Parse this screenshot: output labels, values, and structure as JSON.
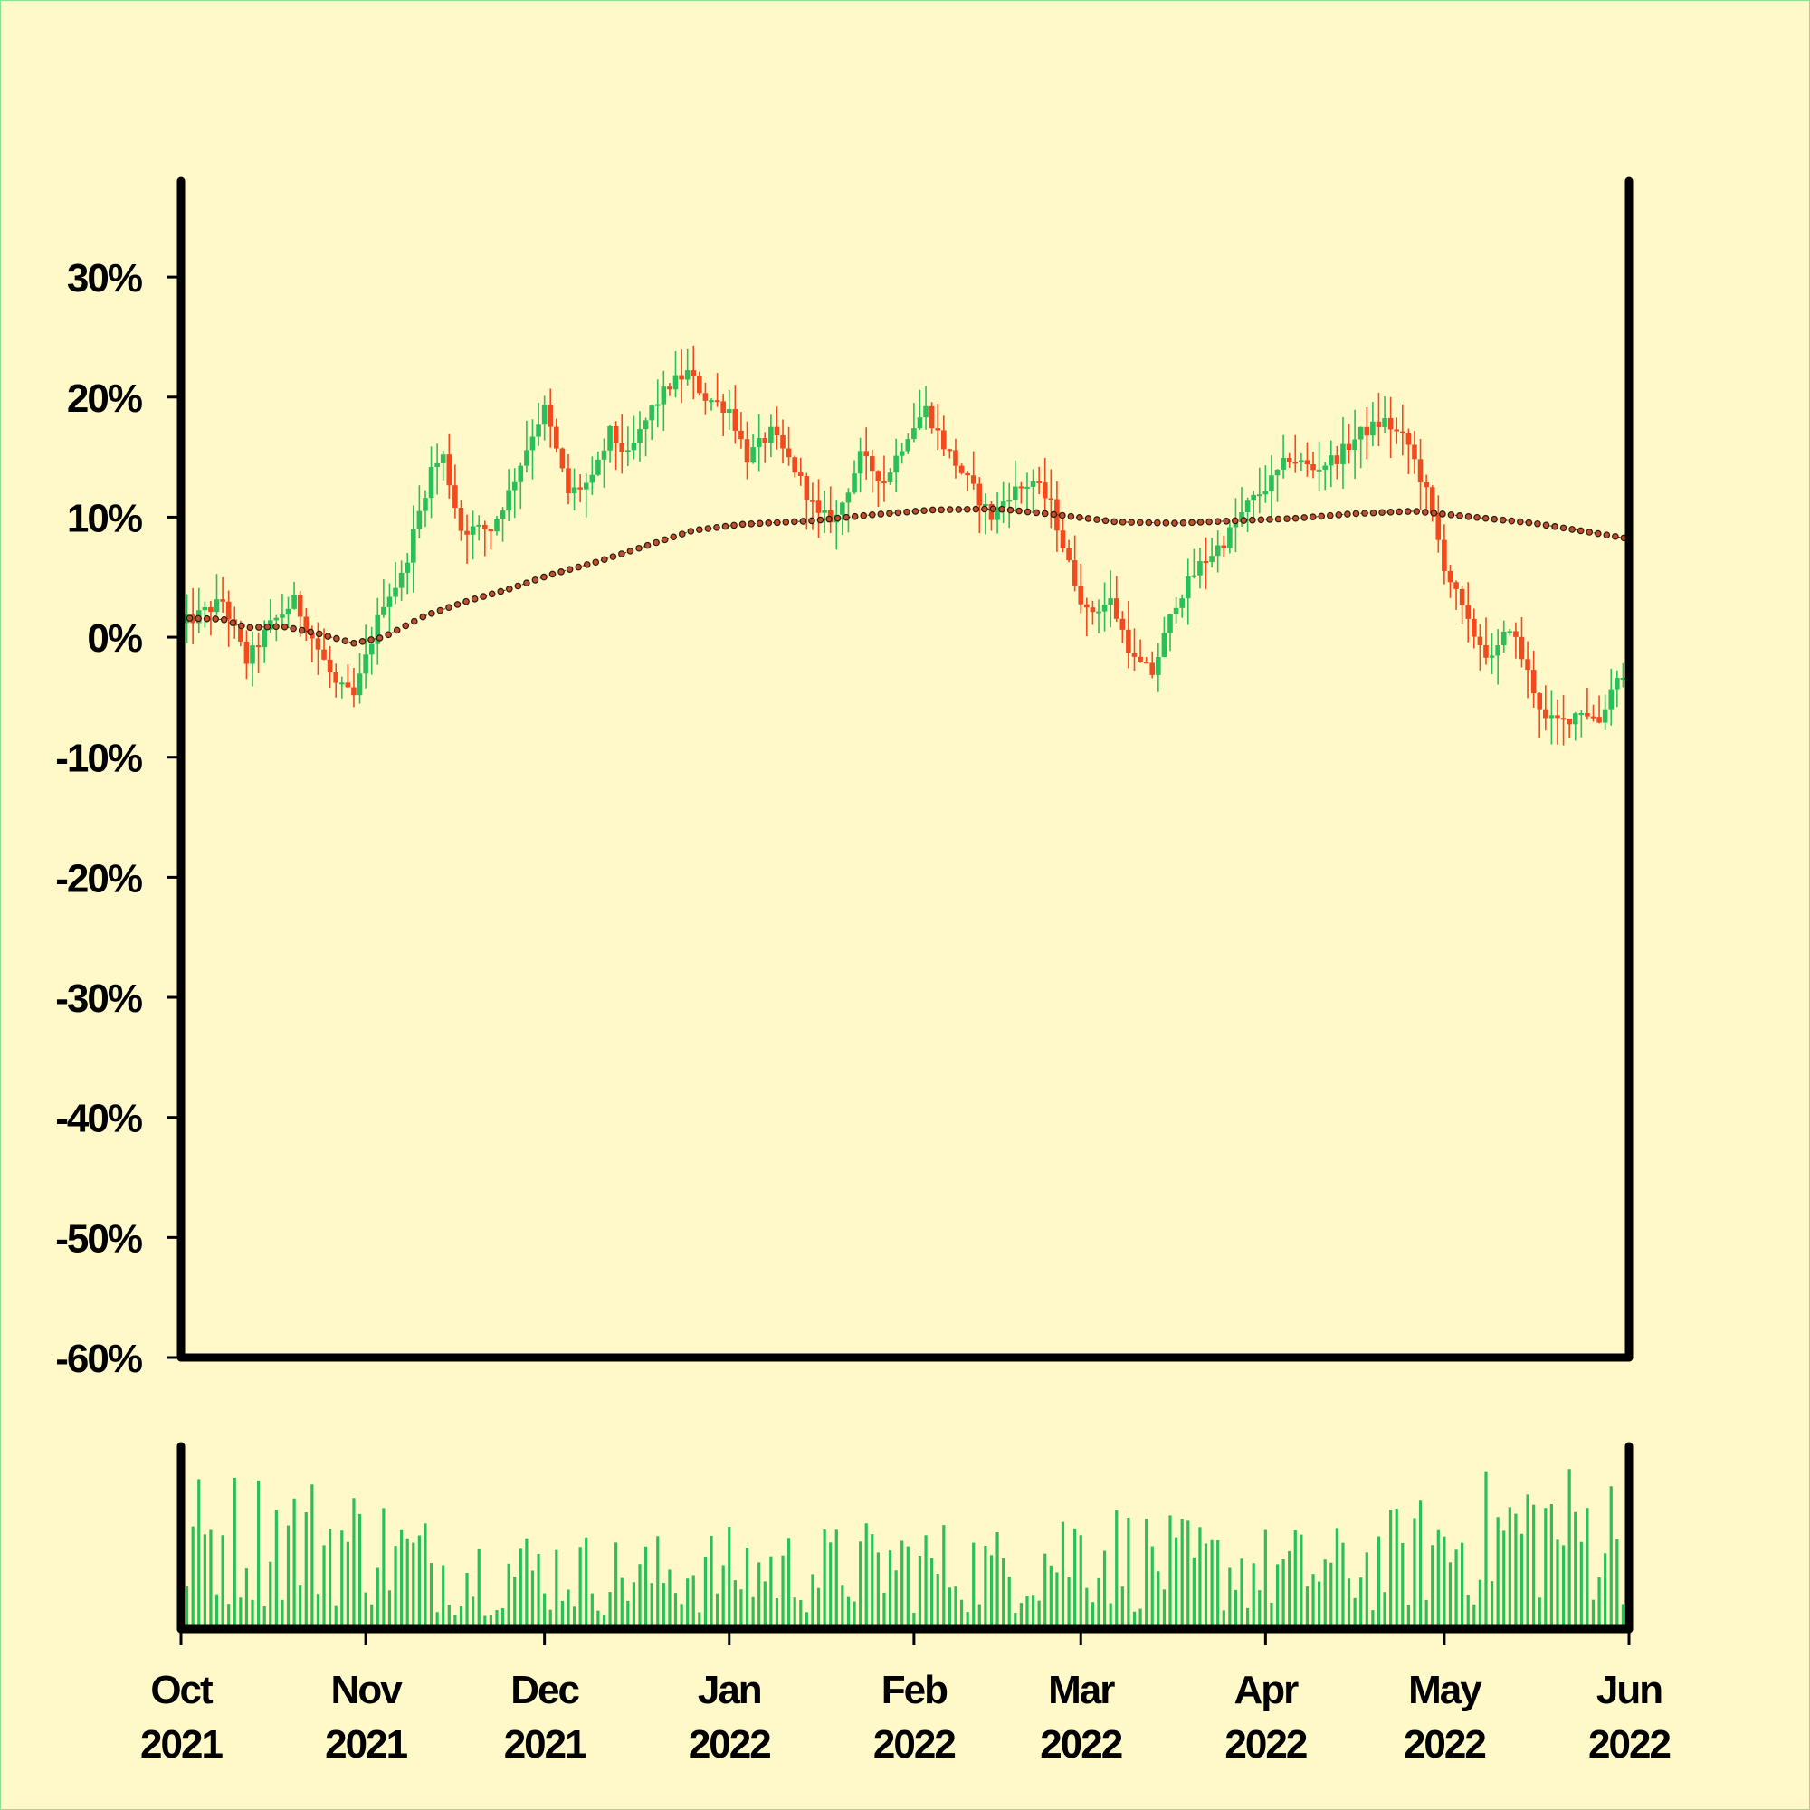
{
  "chart_data": [
    {
      "type": "candlestick",
      "panel": "price",
      "title": "",
      "xlabel": "",
      "ylabel": "",
      "ylim": [
        -60,
        38
      ],
      "y_unit": "%",
      "yticks": [
        {
          "value": 30,
          "label": "30%"
        },
        {
          "value": 20,
          "label": "20%"
        },
        {
          "value": 10,
          "label": "10%"
        },
        {
          "value": 0,
          "label": "0%"
        },
        {
          "value": -10,
          "label": "-10%"
        },
        {
          "value": -20,
          "label": "-20%"
        },
        {
          "value": -30,
          "label": "-30%"
        },
        {
          "value": -40,
          "label": "-40%"
        },
        {
          "value": -50,
          "label": "-50%"
        },
        {
          "value": -60,
          "label": "-60%"
        }
      ],
      "xlim": [
        "2021-10-01",
        "2022-06-01"
      ],
      "close_path_points": [
        {
          "date": "2021-10-01",
          "close": 1
        },
        {
          "date": "2021-10-08",
          "close": 3
        },
        {
          "date": "2021-10-12",
          "close": -2
        },
        {
          "date": "2021-10-16",
          "close": 1
        },
        {
          "date": "2021-10-20",
          "close": 3
        },
        {
          "date": "2021-10-24",
          "close": -1
        },
        {
          "date": "2021-10-27",
          "close": -4
        },
        {
          "date": "2021-10-30",
          "close": -5
        },
        {
          "date": "2021-11-04",
          "close": 3
        },
        {
          "date": "2021-11-07",
          "close": 5
        },
        {
          "date": "2021-11-12",
          "close": 14
        },
        {
          "date": "2021-11-14",
          "close": 15
        },
        {
          "date": "2021-11-17",
          "close": 9
        },
        {
          "date": "2021-11-22",
          "close": 9
        },
        {
          "date": "2021-11-25",
          "close": 12
        },
        {
          "date": "2021-11-29",
          "close": 17
        },
        {
          "date": "2021-12-01",
          "close": 19
        },
        {
          "date": "2021-12-05",
          "close": 12
        },
        {
          "date": "2021-12-09",
          "close": 13
        },
        {
          "date": "2021-12-12",
          "close": 17
        },
        {
          "date": "2021-12-15",
          "close": 15
        },
        {
          "date": "2021-12-19",
          "close": 19
        },
        {
          "date": "2021-12-22",
          "close": 21
        },
        {
          "date": "2021-12-25",
          "close": 22
        },
        {
          "date": "2021-12-28",
          "close": 20
        },
        {
          "date": "2022-01-01",
          "close": 19
        },
        {
          "date": "2022-01-04",
          "close": 15
        },
        {
          "date": "2022-01-08",
          "close": 17
        },
        {
          "date": "2022-01-12",
          "close": 14
        },
        {
          "date": "2022-01-16",
          "close": 10
        },
        {
          "date": "2022-01-19",
          "close": 10
        },
        {
          "date": "2022-01-23",
          "close": 15
        },
        {
          "date": "2022-01-27",
          "close": 13
        },
        {
          "date": "2022-01-31",
          "close": 17
        },
        {
          "date": "2022-02-03",
          "close": 19
        },
        {
          "date": "2022-02-06",
          "close": 16
        },
        {
          "date": "2022-02-10",
          "close": 13
        },
        {
          "date": "2022-02-14",
          "close": 10
        },
        {
          "date": "2022-02-17",
          "close": 12
        },
        {
          "date": "2022-02-21",
          "close": 13
        },
        {
          "date": "2022-02-24",
          "close": 11
        },
        {
          "date": "2022-02-27",
          "close": 6
        },
        {
          "date": "2022-03-02",
          "close": 2
        },
        {
          "date": "2022-03-06",
          "close": 3
        },
        {
          "date": "2022-03-10",
          "close": -2
        },
        {
          "date": "2022-03-13",
          "close": -3
        },
        {
          "date": "2022-03-17",
          "close": 3
        },
        {
          "date": "2022-03-21",
          "close": 6
        },
        {
          "date": "2022-03-25",
          "close": 8
        },
        {
          "date": "2022-03-29",
          "close": 11
        },
        {
          "date": "2022-04-02",
          "close": 13
        },
        {
          "date": "2022-04-05",
          "close": 15
        },
        {
          "date": "2022-04-09",
          "close": 14
        },
        {
          "date": "2022-04-13",
          "close": 15
        },
        {
          "date": "2022-04-17",
          "close": 17
        },
        {
          "date": "2022-04-21",
          "close": 18
        },
        {
          "date": "2022-04-25",
          "close": 16
        },
        {
          "date": "2022-04-28",
          "close": 12
        },
        {
          "date": "2022-05-01",
          "close": 6
        },
        {
          "date": "2022-05-05",
          "close": 1
        },
        {
          "date": "2022-05-09",
          "close": -2
        },
        {
          "date": "2022-05-12",
          "close": 1
        },
        {
          "date": "2022-05-15",
          "close": -3
        },
        {
          "date": "2022-05-18",
          "close": -7
        },
        {
          "date": "2022-05-21",
          "close": -7
        },
        {
          "date": "2022-05-24",
          "close": -6
        },
        {
          "date": "2022-05-27",
          "close": -7
        },
        {
          "date": "2022-05-30",
          "close": -3
        },
        {
          "date": "2022-06-01",
          "close": -4
        }
      ],
      "moving_average": [
        {
          "date": "2021-10-01",
          "value": 1.6
        },
        {
          "date": "2021-10-08",
          "value": 1.5
        },
        {
          "date": "2021-10-12",
          "value": 0.8
        },
        {
          "date": "2021-10-18",
          "value": 0.9
        },
        {
          "date": "2021-10-24",
          "value": 0.3
        },
        {
          "date": "2021-10-30",
          "value": -0.5
        },
        {
          "date": "2021-11-04",
          "value": 0.0
        },
        {
          "date": "2021-11-11",
          "value": 1.8
        },
        {
          "date": "2021-11-18",
          "value": 3.0
        },
        {
          "date": "2021-11-25",
          "value": 4.0
        },
        {
          "date": "2021-12-02",
          "value": 5.2
        },
        {
          "date": "2021-12-10",
          "value": 6.3
        },
        {
          "date": "2021-12-18",
          "value": 7.6
        },
        {
          "date": "2021-12-26",
          "value": 8.9
        },
        {
          "date": "2022-01-03",
          "value": 9.4
        },
        {
          "date": "2022-01-15",
          "value": 9.7
        },
        {
          "date": "2022-01-25",
          "value": 10.2
        },
        {
          "date": "2022-02-04",
          "value": 10.6
        },
        {
          "date": "2022-02-15",
          "value": 10.7
        },
        {
          "date": "2022-02-25",
          "value": 10.2
        },
        {
          "date": "2022-03-07",
          "value": 9.6
        },
        {
          "date": "2022-03-17",
          "value": 9.5
        },
        {
          "date": "2022-03-27",
          "value": 9.7
        },
        {
          "date": "2022-04-06",
          "value": 9.9
        },
        {
          "date": "2022-04-16",
          "value": 10.3
        },
        {
          "date": "2022-04-26",
          "value": 10.5
        },
        {
          "date": "2022-05-06",
          "value": 10.0
        },
        {
          "date": "2022-05-16",
          "value": 9.5
        },
        {
          "date": "2022-05-26",
          "value": 8.7
        },
        {
          "date": "2022-06-01",
          "value": 8.2
        }
      ],
      "colors": {
        "up": "#2bbf5a",
        "down": "#f04a1e",
        "moving_average": "#5b2a22",
        "axis": "#000000",
        "background": "#fff8c8"
      },
      "grid": false,
      "legend": "none"
    },
    {
      "type": "bar",
      "panel": "volume",
      "title": "",
      "xlabel": "",
      "ylabel": "",
      "color": "#2bbf5a",
      "xlim": [
        "2021-10-01",
        "2022-06-01"
      ],
      "xticks": [
        {
          "date": "2021-10-01",
          "month": "Oct",
          "year": "2021"
        },
        {
          "date": "2021-11-01",
          "month": "Nov",
          "year": "2021"
        },
        {
          "date": "2021-12-01",
          "month": "Dec",
          "year": "2021"
        },
        {
          "date": "2022-01-01",
          "month": "Jan",
          "year": "2022"
        },
        {
          "date": "2022-02-01",
          "month": "Feb",
          "year": "2022"
        },
        {
          "date": "2022-03-01",
          "month": "Mar",
          "year": "2022"
        },
        {
          "date": "2022-04-01",
          "month": "Apr",
          "year": "2022"
        },
        {
          "date": "2022-05-01",
          "month": "May",
          "year": "2022"
        },
        {
          "date": "2022-06-01",
          "month": "Jun",
          "year": "2022"
        }
      ],
      "volume_envelope": [
        {
          "date": "2021-10-01",
          "level": 0.75
        },
        {
          "date": "2021-10-15",
          "level": 0.8
        },
        {
          "date": "2021-11-01",
          "level": 0.72
        },
        {
          "date": "2021-11-15",
          "level": 0.5
        },
        {
          "date": "2021-12-01",
          "level": 0.5
        },
        {
          "date": "2021-12-15",
          "level": 0.45
        },
        {
          "date": "2022-01-01",
          "level": 0.5
        },
        {
          "date": "2022-01-15",
          "level": 0.5
        },
        {
          "date": "2022-02-01",
          "level": 0.55
        },
        {
          "date": "2022-02-15",
          "level": 0.5
        },
        {
          "date": "2022-03-01",
          "level": 0.7
        },
        {
          "date": "2022-03-15",
          "level": 0.55
        },
        {
          "date": "2022-04-01",
          "level": 0.5
        },
        {
          "date": "2022-04-15",
          "level": 0.5
        },
        {
          "date": "2022-05-01",
          "level": 0.7
        },
        {
          "date": "2022-05-15",
          "level": 0.85
        },
        {
          "date": "2022-06-01",
          "level": 0.8
        }
      ]
    }
  ]
}
